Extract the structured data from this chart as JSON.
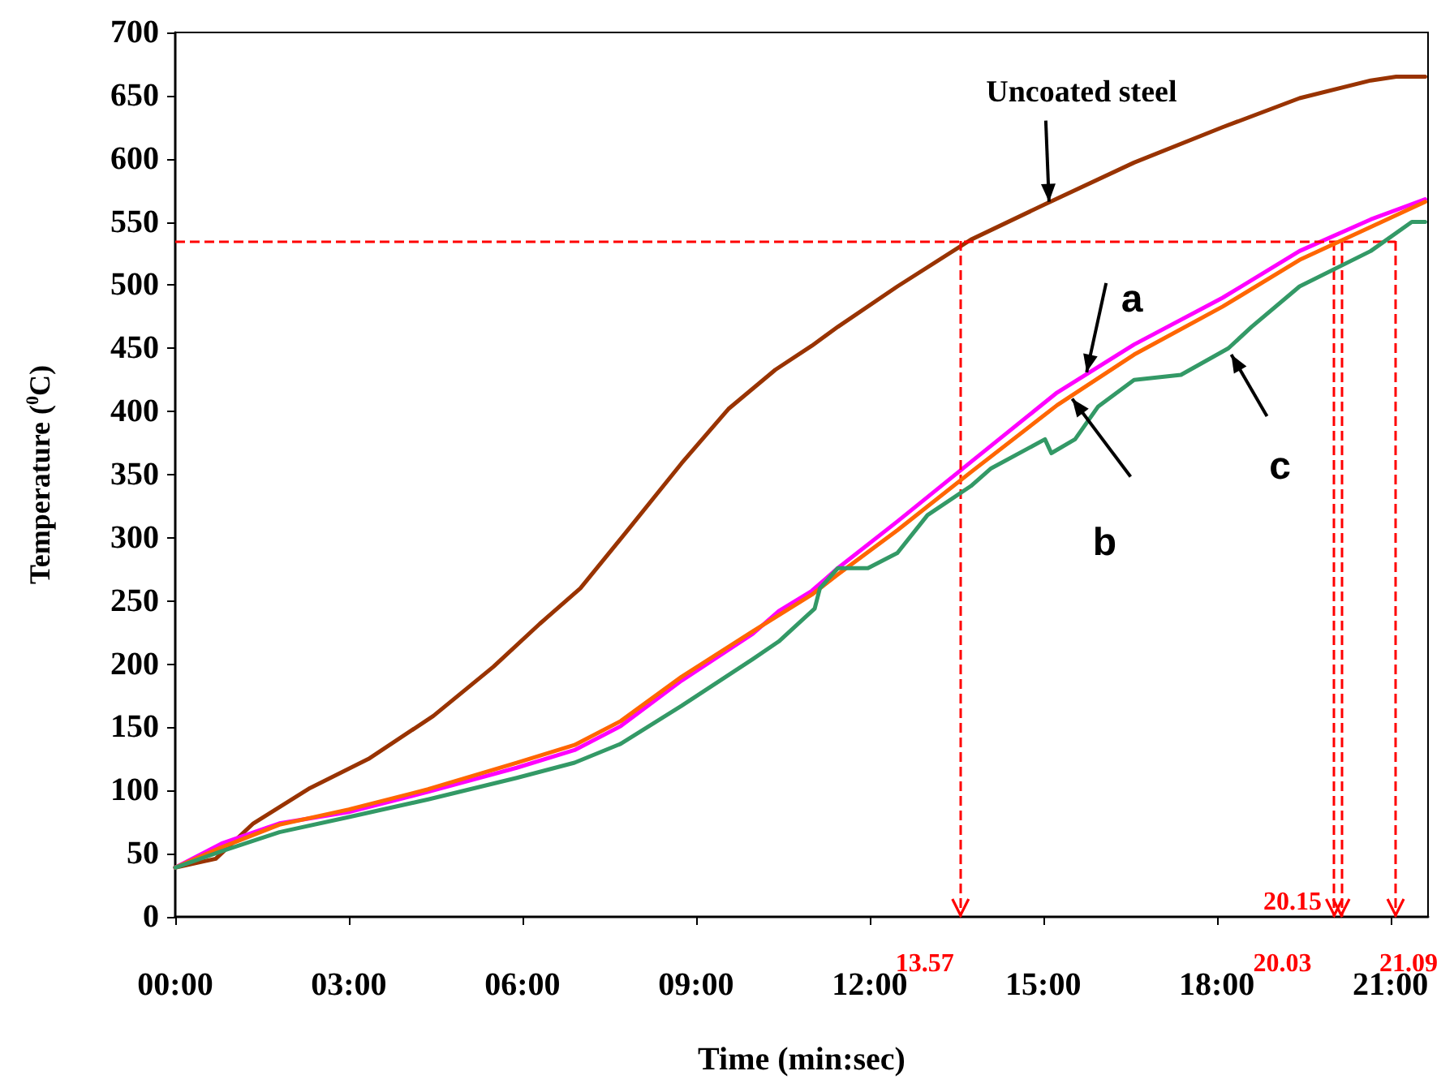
{
  "chart_data": {
    "type": "line",
    "xlabel": "Time (min:sec)",
    "ylabel": "Temperature ($^{0}$C)",
    "xlim": [
      0,
      21.65
    ],
    "xticks": [
      {
        "value": 0,
        "label": "00:00"
      },
      {
        "value": 3,
        "label": "03:00"
      },
      {
        "value": 6,
        "label": "06:00"
      },
      {
        "value": 9,
        "label": "09:00"
      },
      {
        "value": 12,
        "label": "12:00"
      },
      {
        "value": 15,
        "label": "15:00"
      },
      {
        "value": 18,
        "label": "18:00"
      },
      {
        "value": 21,
        "label": "21:00"
      }
    ],
    "ylim": [
      0,
      700
    ],
    "yticks": [
      0,
      50,
      100,
      150,
      200,
      250,
      300,
      350,
      400,
      450,
      500,
      550,
      600,
      650,
      700
    ],
    "grid": false,
    "marker": "none",
    "line_style": "solid",
    "series": [
      {
        "color": "#993300",
        "x": [
          0,
          0.7,
          1.35,
          2.33,
          3.34,
          4.46,
          5.5,
          6.3,
          7.0,
          7.8,
          8.75,
          9.56,
          10.37,
          11.0,
          11.45,
          12.48,
          13.75,
          15.03,
          16.57,
          18.1,
          19.43,
          20.66,
          21.1,
          21.6
        ],
        "values": [
          39,
          46,
          74,
          102,
          125,
          159,
          198,
          232,
          260,
          305,
          359,
          402,
          433,
          452,
          467,
          499,
          536,
          564,
          597,
          625,
          648,
          662,
          665,
          665
        ]
      },
      {
        "color": "#ff00ff",
        "x": [
          0,
          0.8,
          1.8,
          3.0,
          4.37,
          5.9,
          6.9,
          7.7,
          8.75,
          9.98,
          10.43,
          11.0,
          11.45,
          12.48,
          13.75,
          15.24,
          16.57,
          18.1,
          19.43,
          20.66,
          21.6
        ],
        "values": [
          39,
          58,
          74,
          83,
          99,
          118,
          132,
          151,
          187,
          224,
          242,
          258,
          276,
          313,
          360,
          415,
          453,
          490,
          527,
          552,
          568
        ]
      },
      {
        "color": "#ff6600",
        "x": [
          0,
          0.8,
          1.8,
          3.0,
          4.37,
          5.9,
          6.9,
          7.7,
          8.75,
          9.98,
          11.0,
          11.45,
          12.48,
          13.75,
          15.24,
          16.57,
          18.1,
          19.43,
          20.66,
          21.6
        ],
        "values": [
          39,
          55,
          73,
          85,
          101,
          122,
          136,
          155,
          190,
          226,
          255,
          271,
          306,
          352,
          405,
          445,
          483,
          520,
          546,
          566
        ]
      },
      {
        "color": "#339966",
        "x": [
          0,
          0.8,
          1.8,
          3.0,
          4.37,
          5.9,
          6.9,
          7.7,
          8.75,
          9.98,
          10.43,
          11.05,
          11.14,
          11.45,
          11.97,
          12.48,
          13.0,
          13.75,
          14.1,
          15.03,
          15.14,
          15.55,
          15.95,
          16.57,
          17.38,
          18.2,
          18.6,
          19.43,
          20.66,
          21.37,
          21.6
        ],
        "values": [
          39,
          52,
          67,
          79,
          93,
          110,
          122,
          137,
          167,
          204,
          218,
          244,
          260,
          276,
          276,
          288,
          318,
          341,
          355,
          378,
          367,
          378,
          404,
          425,
          429,
          450,
          467,
          499,
          527,
          550,
          550
        ]
      }
    ],
    "ref_lines": [
      {
        "axis": "y",
        "value": 535,
        "color": "#ff0000",
        "line_style": "dashed"
      },
      {
        "axis": "x",
        "value": 13.57,
        "label": "13.57",
        "color": "#ff0000",
        "line_style": "dashed"
      },
      {
        "axis": "x",
        "value": 20.03,
        "label": "20.03",
        "color": "#ff0000",
        "line_style": "dashed"
      },
      {
        "axis": "x",
        "value": 20.15,
        "label": "20.15",
        "color": "#ff0000",
        "line_style": "dashed"
      },
      {
        "axis": "x",
        "value": 21.09,
        "label": "21.09",
        "color": "#ff0000",
        "line_style": "dashed"
      }
    ],
    "annotations": [
      {
        "text": "Uncoated steel",
        "x": 15.1,
        "y": 566
      },
      {
        "text": "a",
        "x": 15.75,
        "y": 431
      },
      {
        "text": "b",
        "x": 15.5,
        "y": 410
      },
      {
        "text": "c",
        "x": 18.25,
        "y": 445
      }
    ]
  }
}
